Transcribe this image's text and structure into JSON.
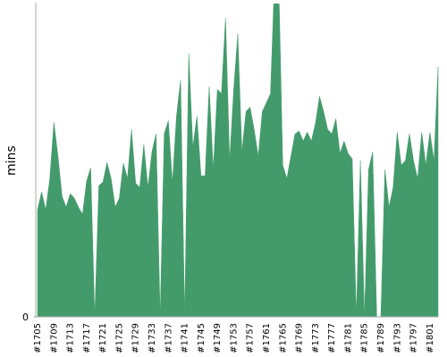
{
  "chart_data": {
    "type": "area",
    "y_label": "mins",
    "color": "#439b6b",
    "categories": [
      "#1705",
      null,
      null,
      null,
      "#1709",
      null,
      null,
      null,
      "#1713",
      null,
      null,
      null,
      "#1717",
      null,
      null,
      null,
      "#1721",
      null,
      null,
      null,
      "#1725",
      null,
      null,
      null,
      "#1729",
      null,
      null,
      null,
      "#1733",
      null,
      null,
      null,
      "#1737",
      null,
      null,
      null,
      "#1741",
      null,
      null,
      null,
      "#1745",
      null,
      null,
      null,
      "#1749",
      null,
      null,
      null,
      "#1753",
      null,
      null,
      null,
      "#1757",
      null,
      null,
      null,
      "#1761",
      null,
      null,
      null,
      "#1765",
      null,
      null,
      null,
      "#1769",
      null,
      null,
      null,
      "#1773",
      null,
      null,
      null,
      "#1777",
      null,
      null,
      null,
      "#1781",
      null,
      null,
      null,
      "#1785",
      null,
      null,
      null,
      "#1789",
      null,
      null,
      null,
      "#1793",
      null,
      null,
      null,
      "#1797",
      null,
      null,
      null,
      "#1801",
      null,
      null
    ],
    "values": [
      12,
      14,
      12,
      15.5,
      21.8,
      18,
      13.5,
      12.3,
      13.8,
      13.3,
      12.3,
      11.5,
      15.2,
      16.7,
      0,
      14.7,
      15.1,
      17.3,
      15.5,
      12.3,
      13.3,
      17.2,
      15.5,
      21,
      15,
      14.5,
      19.3,
      14.5,
      18.5,
      20.5,
      0,
      20.5,
      22,
      15,
      22.5,
      26.5,
      0,
      29.5,
      19,
      22.5,
      15.8,
      15.8,
      25.8,
      16.5,
      25.5,
      25,
      33.5,
      17.5,
      25.5,
      31.7,
      18.5,
      23,
      23.5,
      21,
      18,
      23,
      24,
      25,
      38,
      38,
      17,
      15.5,
      18,
      20.5,
      20.8,
      19.7,
      20.7,
      19.7,
      21.7,
      24.7,
      23,
      21,
      20.5,
      22.2,
      18.3,
      19.7,
      18.3,
      17.7,
      0,
      17.5,
      0,
      16.5,
      18.5,
      0,
      0,
      16.5,
      12.3,
      14.5,
      20.7,
      17,
      17.5,
      20.5,
      17.5,
      15.5,
      20.7,
      17,
      20.7,
      17.5,
      28
    ],
    "ylim": [
      0,
      35
    ],
    "yticks": [
      0
    ]
  }
}
